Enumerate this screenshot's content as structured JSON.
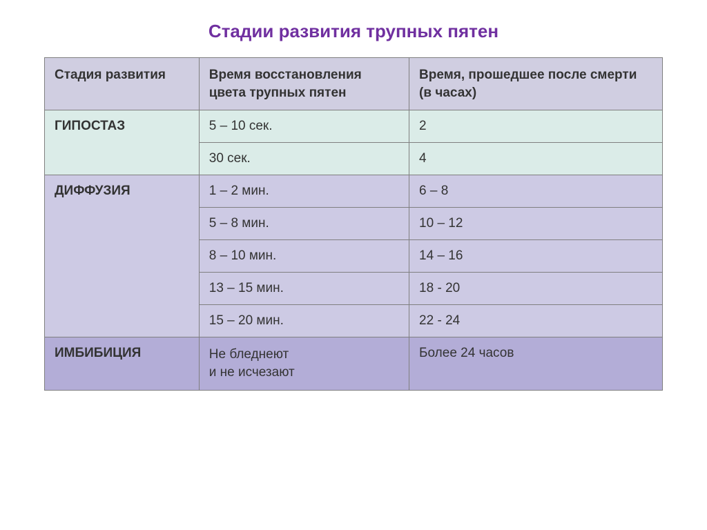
{
  "title": "Стадии развития трупных пятен",
  "title_color": "#7030a0",
  "table": {
    "border_color": "#7f7f7f",
    "header_bg": "#d0cee1",
    "text_color": "#333333",
    "columns": [
      "Стадия развития",
      "Время восстановления цвета трупных пятен",
      "Время, прошедшее после смерти (в часах)"
    ],
    "sections": [
      {
        "stage": "ГИПОСТАЗ",
        "bg": "#dbece8",
        "rows": [
          {
            "recov": "5 – 10 сек.",
            "hours": "2"
          },
          {
            "recov": "30 сек.",
            "hours": "4"
          }
        ]
      },
      {
        "stage": "ДИФФУЗИЯ",
        "bg": "#cdcae4",
        "rows": [
          {
            "recov": "1 – 2 мин.",
            "hours": "6 – 8"
          },
          {
            "recov": "5 – 8 мин.",
            "hours": "10 – 12"
          },
          {
            "recov": "8 – 10 мин.",
            "hours": "14 – 16"
          },
          {
            "recov": "13 – 15 мин.",
            "hours": "18 - 20"
          },
          {
            "recov": "15 – 20 мин.",
            "hours": "22 - 24"
          }
        ]
      },
      {
        "stage": "ИМБИБИЦИЯ",
        "bg": "#b3add7",
        "rows": [
          {
            "recov": "Не бледнеют\nи не исчезают",
            "hours": "Более 24 часов"
          }
        ]
      }
    ]
  }
}
